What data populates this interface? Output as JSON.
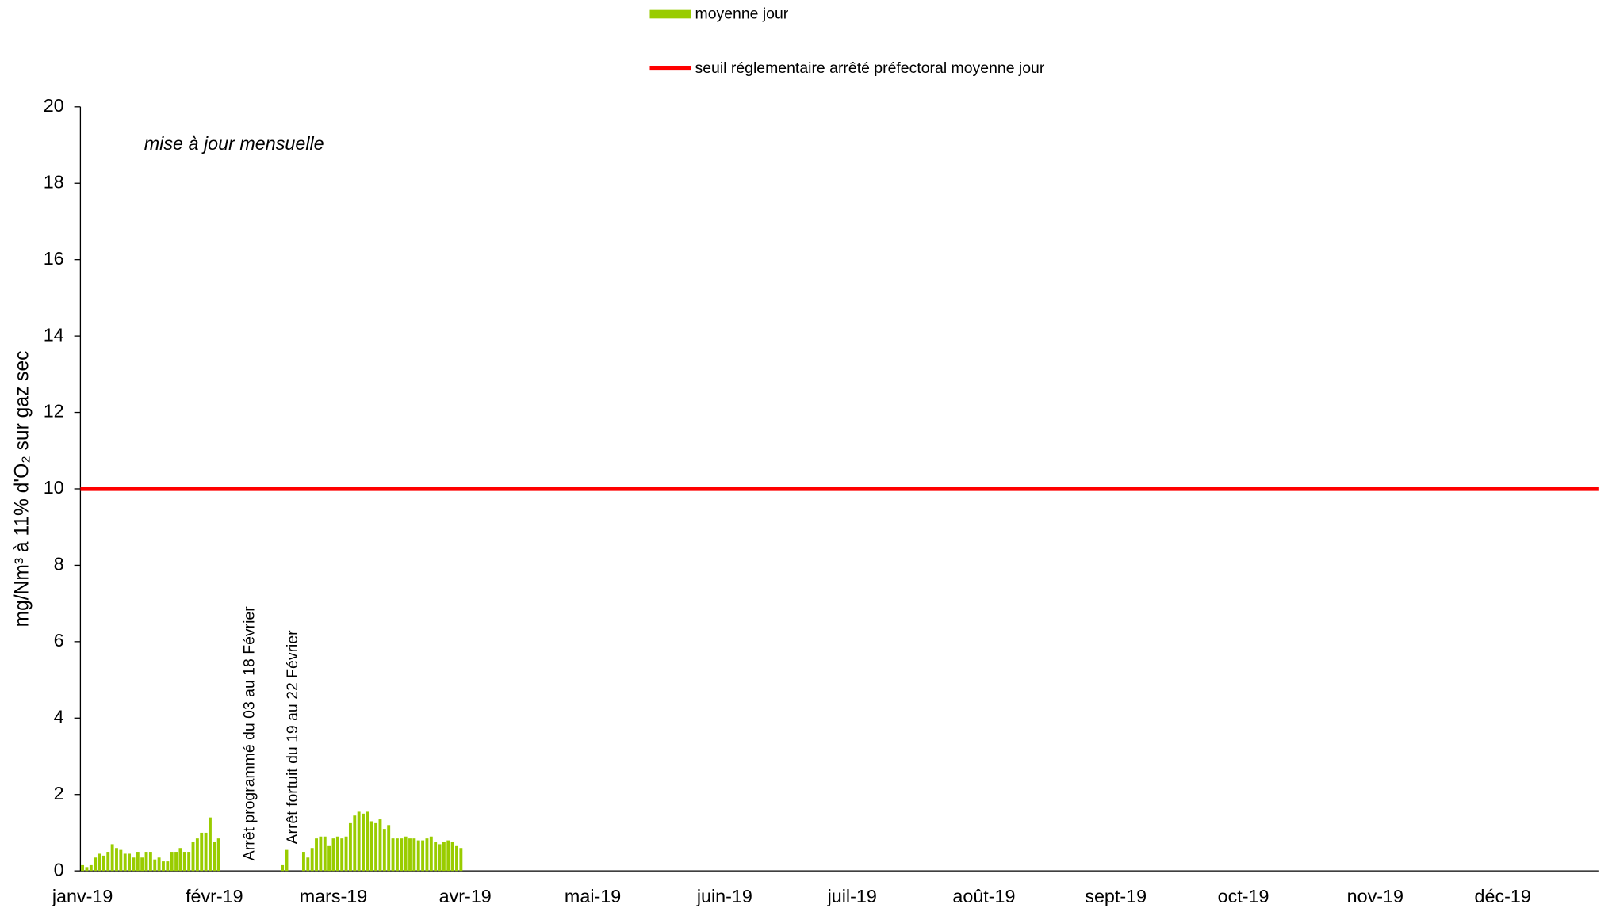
{
  "chart_data": {
    "type": "bar",
    "ylabel": "mg/Nm³ à 11% d'O₂ sur gaz sec",
    "annotations": [
      "mise à jour mensuelle",
      "Arrêt programmé du 03 au 18 Février",
      "Arrêt fortuit du 19 au 22 Février"
    ],
    "series": [
      {
        "name": "moyenne jour",
        "color": "#99cc00",
        "values": [
          0.15,
          0.1,
          0.15,
          0.35,
          0.45,
          0.4,
          0.5,
          0.7,
          0.6,
          0.55,
          0.45,
          0.45,
          0.35,
          0.5,
          0.35,
          0.5,
          0.5,
          0.3,
          0.35,
          0.25,
          0.25,
          0.5,
          0.5,
          0.6,
          0.5,
          0.5,
          0.75,
          0.85,
          1.0,
          1.0,
          1.4,
          0.75,
          0.85,
          null,
          null,
          null,
          null,
          null,
          null,
          null,
          null,
          null,
          null,
          null,
          null,
          null,
          null,
          0.15,
          0.55,
          null,
          null,
          null,
          0.5,
          0.35,
          0.6,
          0.85,
          0.9,
          0.9,
          0.65,
          0.85,
          0.9,
          0.85,
          0.9,
          1.25,
          1.45,
          1.55,
          1.5,
          1.55,
          1.3,
          1.25,
          1.35,
          1.1,
          1.2,
          0.85,
          0.85,
          0.85,
          0.9,
          0.85,
          0.85,
          0.8,
          0.8,
          0.85,
          0.9,
          0.75,
          0.7,
          0.75,
          0.8,
          0.75,
          0.65,
          0.6
        ]
      }
    ],
    "threshold": {
      "name": "seuil réglementaire arrêté préfectoral moyenne jour",
      "color": "#ff0000",
      "value": 10
    },
    "ylim": [
      0,
      20
    ],
    "yticks": [
      0,
      2,
      4,
      6,
      8,
      10,
      12,
      14,
      16,
      18,
      20
    ],
    "xlim": [
      -0.5,
      356.5
    ],
    "xticks": [
      {
        "value": 0,
        "label": "janv-19"
      },
      {
        "value": 31,
        "label": "févr-19"
      },
      {
        "value": 59,
        "label": "mars-19"
      },
      {
        "value": 90,
        "label": "avr-19"
      },
      {
        "value": 120,
        "label": "mai-19"
      },
      {
        "value": 151,
        "label": "juin-19"
      },
      {
        "value": 181,
        "label": "juil-19"
      },
      {
        "value": 212,
        "label": "août-19"
      },
      {
        "value": 243,
        "label": "sept-19"
      },
      {
        "value": 273,
        "label": "oct-19"
      },
      {
        "value": 304,
        "label": "nov-19"
      },
      {
        "value": 334,
        "label": "déc-19"
      }
    ]
  }
}
